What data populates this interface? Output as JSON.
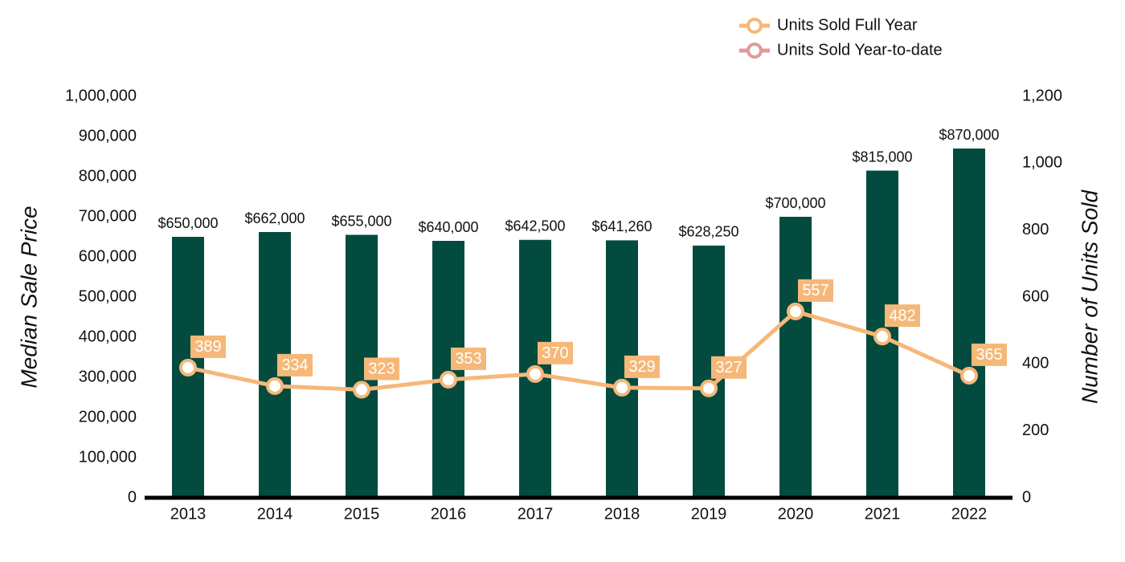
{
  "chart_data": {
    "type": "bar",
    "categories": [
      "2013",
      "2014",
      "2015",
      "2016",
      "2017",
      "2018",
      "2019",
      "2020",
      "2021",
      "2022"
    ],
    "values": [
      650000,
      662000,
      655000,
      640000,
      642500,
      641260,
      628250,
      700000,
      815000,
      870000
    ],
    "value_labels": [
      "$650,000",
      "$662,000",
      "$655,000",
      "$640,000",
      "$642,500",
      "$641,260",
      "$628,250",
      "$700,000",
      "$815,000",
      "$870,000"
    ],
    "color": "#034b3f",
    "ylabel": "Median Sale Price",
    "y2label": "Number of Units Sold",
    "ylim": [
      0,
      1000000
    ],
    "yticks": [
      0,
      {
        "value": 100000,
        "label": "100,000"
      },
      {
        "value": 200000,
        "label": "200,000"
      },
      {
        "value": 300000,
        "label": "300,000"
      },
      {
        "value": 400000,
        "label": "400,000"
      },
      {
        "value": 500000,
        "label": "500,000"
      },
      {
        "value": 600000,
        "label": "600,000"
      },
      {
        "value": 700000,
        "label": "700,000"
      },
      {
        "value": 800000,
        "label": "800,000"
      },
      {
        "value": 900000,
        "label": "900,000"
      },
      {
        "value": 1000000,
        "label": "1,000,000"
      }
    ],
    "y2lim": [
      0,
      1200
    ],
    "y2ticks": [
      0,
      200,
      400,
      600,
      800,
      {
        "value": 1000,
        "label": "1,000"
      },
      {
        "value": 1200,
        "label": "1,200"
      }
    ],
    "grid": false,
    "legend": "top-right",
    "series": [
      {
        "name": "Units Sold Full Year",
        "type": "line",
        "axis": "y2",
        "color": "#f5b879",
        "values": [
          389,
          334,
          323,
          353,
          370,
          329,
          327,
          557,
          482,
          365
        ]
      },
      {
        "name": "Units Sold Year-to-date",
        "type": "line",
        "axis": "y2",
        "color": "#e09a9a",
        "values": [
          null,
          null,
          null,
          null,
          null,
          null,
          null,
          null,
          null,
          null
        ]
      }
    ]
  }
}
